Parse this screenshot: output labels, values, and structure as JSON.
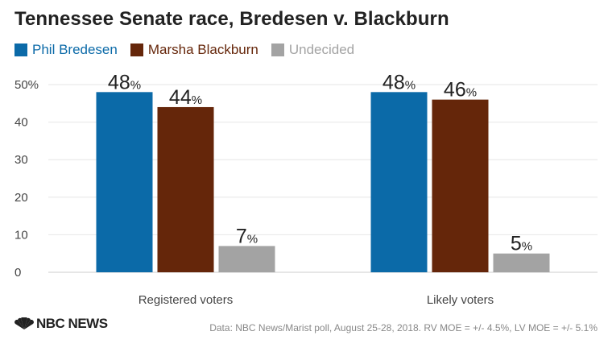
{
  "title": "Tennessee Senate race, Bredesen v. Blackburn",
  "source": "Data: NBC News/Marist poll, August 25-28, 2018. RV MOE = +/- 4.5%, LV MOE = +/- 5.1%",
  "logo": {
    "text": "NBC NEWS",
    "icon": "nbc-peacock-icon"
  },
  "chart_data": {
    "type": "bar",
    "categories": [
      "Registered voters",
      "Likely voters"
    ],
    "series": [
      {
        "name": "Phil Bredesen",
        "color": "#0b6aa8",
        "values": [
          48,
          48
        ]
      },
      {
        "name": "Marsha Blackburn",
        "color": "#65260a",
        "values": [
          44,
          46
        ]
      },
      {
        "name": "Undecided",
        "color": "#a3a3a3",
        "values": [
          7,
          5
        ]
      }
    ],
    "value_suffix": "%",
    "yticks": [
      "0",
      "10",
      "20",
      "30",
      "40",
      "50%"
    ],
    "ylim": [
      0,
      50
    ],
    "grid": true,
    "legend_position": "top-left"
  }
}
